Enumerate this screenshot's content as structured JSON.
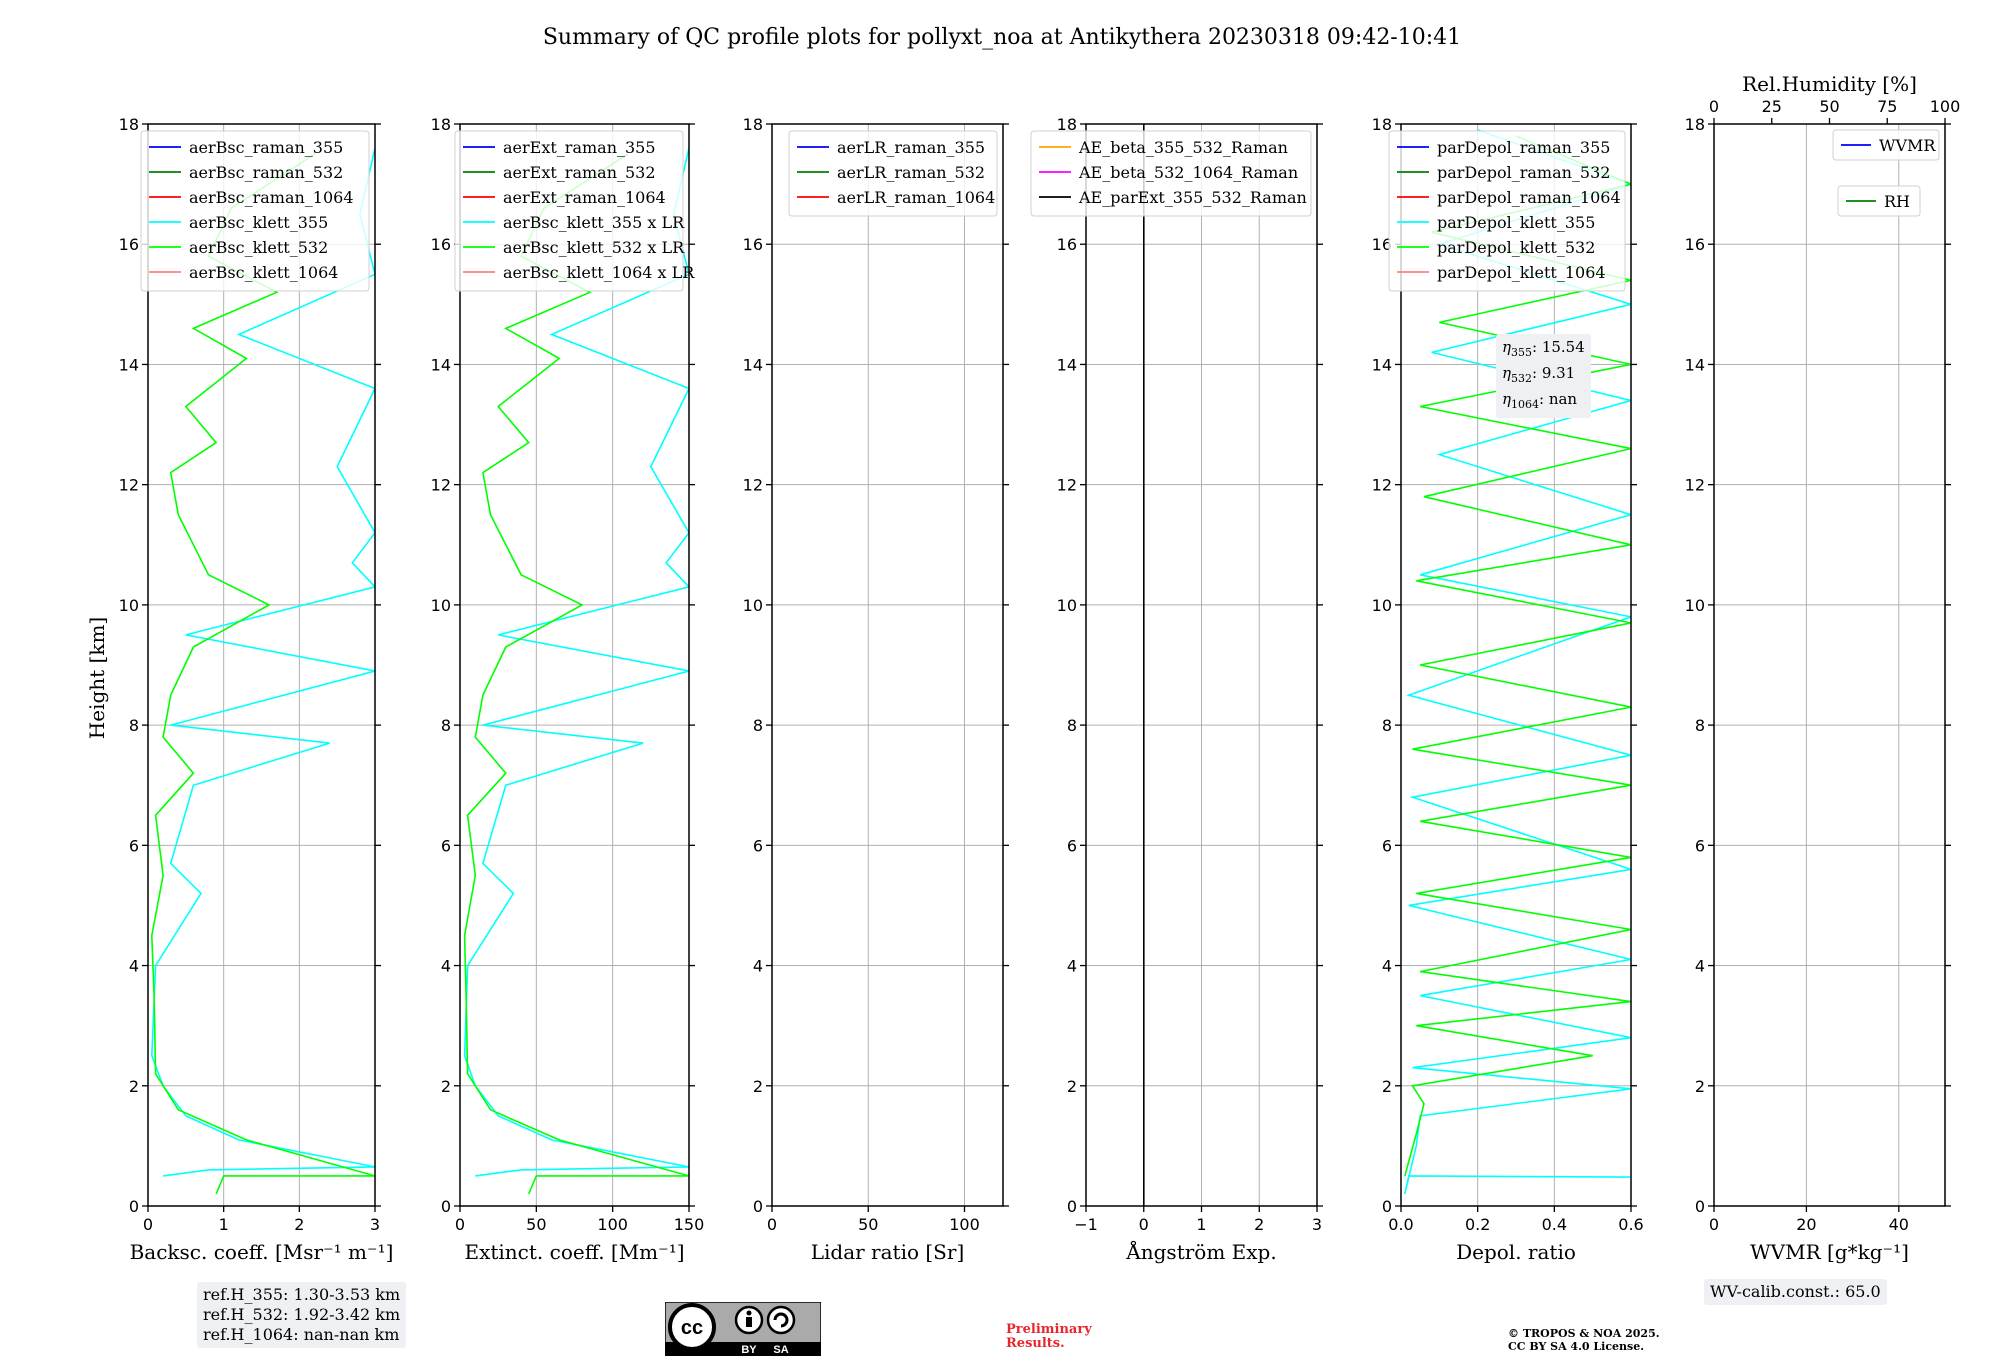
{
  "title": "Summary of QC profile plots for pollyxt_noa at Antikythera 20230318 09:42-10:41",
  "ref_heights": [
    "ref.H_355: 1.30-3.53 km",
    "ref.H_532: 1.92-3.42 km",
    "ref.H_1064: nan-nan km"
  ],
  "eta": [
    "15.54",
    "9.31",
    "nan"
  ],
  "wv_calib": "WV-calib.const.: 65.0",
  "preliminary": [
    "Preliminary",
    "Results."
  ],
  "copyright": [
    "© TROPOS & NOA 2025.",
    "CC BY SA 4.0 License."
  ],
  "license_badge": {
    "cc": "cc",
    "by": "BY",
    "sa": "SA"
  },
  "colors": {
    "blue": "#0000ff",
    "green": "#008000",
    "red": "#ff0000",
    "cyan": "#00ffff",
    "lime": "#00ff00",
    "salmon": "#ff8080",
    "orange": "#ffa500",
    "magenta": "#ff00ff",
    "black": "#000000"
  },
  "chart_data": [
    {
      "type": "line",
      "xlabel": "Backsc. coeff. [Msr⁻¹ m⁻¹]",
      "ylabel": "Height [km]",
      "xlim": [
        0,
        3
      ],
      "ylim": [
        0,
        18
      ],
      "xticks": [
        0,
        1,
        2,
        3
      ],
      "yticks": [
        0,
        2,
        4,
        6,
        8,
        10,
        12,
        14,
        16,
        18
      ],
      "grid": true,
      "legend": "top-right",
      "series": [
        {
          "name": "aerBsc_raman_355",
          "color": "#0000ff",
          "values": []
        },
        {
          "name": "aerBsc_raman_532",
          "color": "#008000",
          "values": []
        },
        {
          "name": "aerBsc_raman_1064",
          "color": "#ff0000",
          "values": []
        },
        {
          "name": "aerBsc_klett_355",
          "color": "#00ffff",
          "values": [
            [
              0.2,
              0.5
            ],
            [
              0.8,
              0.6
            ],
            [
              3,
              0.65
            ],
            [
              1.2,
              1.1
            ],
            [
              0.5,
              1.5
            ],
            [
              0.2,
              2
            ],
            [
              0.05,
              2.5
            ],
            [
              0.1,
              4
            ],
            [
              0.7,
              5.2
            ],
            [
              0.3,
              5.7
            ],
            [
              0.6,
              7
            ],
            [
              2.4,
              7.7
            ],
            [
              0.3,
              8
            ],
            [
              3,
              8.9
            ],
            [
              0.5,
              9.5
            ],
            [
              3,
              10.3
            ],
            [
              2.7,
              10.7
            ],
            [
              3,
              11.2
            ],
            [
              2.5,
              12.3
            ],
            [
              3,
              13.6
            ],
            [
              1.2,
              14.5
            ],
            [
              3,
              15.5
            ],
            [
              2.8,
              16.5
            ],
            [
              3,
              17.6
            ]
          ]
        },
        {
          "name": "aerBsc_klett_532",
          "color": "#00ff00",
          "values": [
            [
              0.9,
              0.2
            ],
            [
              1.0,
              0.5
            ],
            [
              3,
              0.5
            ],
            [
              1.3,
              1.1
            ],
            [
              0.4,
              1.6
            ],
            [
              0.1,
              2.2
            ],
            [
              0.08,
              3.5
            ],
            [
              0.05,
              4.5
            ],
            [
              0.2,
              5.5
            ],
            [
              0.1,
              6.5
            ],
            [
              0.6,
              7.2
            ],
            [
              0.2,
              7.8
            ],
            [
              0.3,
              8.5
            ],
            [
              0.6,
              9.3
            ],
            [
              1.6,
              10
            ],
            [
              0.8,
              10.5
            ],
            [
              0.4,
              11.5
            ],
            [
              0.3,
              12.2
            ],
            [
              0.9,
              12.7
            ],
            [
              0.5,
              13.3
            ],
            [
              1.3,
              14.1
            ],
            [
              0.6,
              14.6
            ],
            [
              1.7,
              15.2
            ],
            [
              0.8,
              15.8
            ],
            [
              1.1,
              16.6
            ],
            [
              2.2,
              17.5
            ]
          ]
        },
        {
          "name": "aerBsc_klett_1064",
          "color": "#ff8080",
          "values": []
        }
      ]
    },
    {
      "type": "line",
      "xlabel": "Extinct. coeff. [Mm⁻¹]",
      "ylabel": "",
      "xlim": [
        0,
        150
      ],
      "ylim": [
        0,
        18
      ],
      "xticks": [
        0,
        50,
        100,
        150
      ],
      "yticks": [
        0,
        2,
        4,
        6,
        8,
        10,
        12,
        14,
        16,
        18
      ],
      "grid": true,
      "legend": "top-right",
      "series": [
        {
          "name": "aerExt_raman_355",
          "color": "#0000ff",
          "values": []
        },
        {
          "name": "aerExt_raman_532",
          "color": "#008000",
          "values": []
        },
        {
          "name": "aerExt_raman_1064",
          "color": "#ff0000",
          "values": []
        },
        {
          "name": "aerBsc_klett_355 x LR",
          "color": "#00ffff",
          "values": [
            [
              10,
              0.5
            ],
            [
              40,
              0.6
            ],
            [
              150,
              0.65
            ],
            [
              60,
              1.1
            ],
            [
              25,
              1.5
            ],
            [
              10,
              2
            ],
            [
              3,
              2.5
            ],
            [
              5,
              4
            ],
            [
              35,
              5.2
            ],
            [
              15,
              5.7
            ],
            [
              30,
              7
            ],
            [
              120,
              7.7
            ],
            [
              15,
              8
            ],
            [
              150,
              8.9
            ],
            [
              25,
              9.5
            ],
            [
              150,
              10.3
            ],
            [
              135,
              10.7
            ],
            [
              150,
              11.2
            ],
            [
              125,
              12.3
            ],
            [
              150,
              13.6
            ],
            [
              60,
              14.5
            ],
            [
              150,
              15.5
            ],
            [
              140,
              16.5
            ],
            [
              150,
              17.6
            ]
          ]
        },
        {
          "name": "aerBsc_klett_532 x LR",
          "color": "#00ff00",
          "values": [
            [
              45,
              0.2
            ],
            [
              50,
              0.5
            ],
            [
              150,
              0.5
            ],
            [
              65,
              1.1
            ],
            [
              20,
              1.6
            ],
            [
              5,
              2.2
            ],
            [
              4,
              3.5
            ],
            [
              3,
              4.5
            ],
            [
              10,
              5.5
            ],
            [
              5,
              6.5
            ],
            [
              30,
              7.2
            ],
            [
              10,
              7.8
            ],
            [
              15,
              8.5
            ],
            [
              30,
              9.3
            ],
            [
              80,
              10
            ],
            [
              40,
              10.5
            ],
            [
              20,
              11.5
            ],
            [
              15,
              12.2
            ],
            [
              45,
              12.7
            ],
            [
              25,
              13.3
            ],
            [
              65,
              14.1
            ],
            [
              30,
              14.6
            ],
            [
              85,
              15.2
            ],
            [
              40,
              15.8
            ],
            [
              55,
              16.6
            ],
            [
              110,
              17.5
            ]
          ]
        },
        {
          "name": "aerBsc_klett_1064 x LR",
          "color": "#ff8080",
          "values": []
        }
      ]
    },
    {
      "type": "line",
      "xlabel": "Lidar ratio [Sr]",
      "ylabel": "",
      "xlim": [
        0,
        120
      ],
      "ylim": [
        0,
        18
      ],
      "xticks": [
        0,
        50,
        100
      ],
      "yticks": [
        0,
        2,
        4,
        6,
        8,
        10,
        12,
        14,
        16,
        18
      ],
      "grid": true,
      "legend": "top-right",
      "series": [
        {
          "name": "aerLR_raman_355",
          "color": "#0000ff",
          "values": []
        },
        {
          "name": "aerLR_raman_532",
          "color": "#008000",
          "values": []
        },
        {
          "name": "aerLR_raman_1064",
          "color": "#ff0000",
          "values": []
        }
      ]
    },
    {
      "type": "line",
      "xlabel": "Ångström Exp.",
      "ylabel": "",
      "xlim": [
        -1,
        3
      ],
      "ylim": [
        0,
        18
      ],
      "xticks": [
        -1,
        0,
        1,
        2,
        3
      ],
      "yticks": [
        0,
        2,
        4,
        6,
        8,
        10,
        12,
        14,
        16,
        18
      ],
      "grid": true,
      "legend": "top-right",
      "series": [
        {
          "name": "AE_beta_355_532_Raman",
          "color": "#ffa500",
          "values": []
        },
        {
          "name": "AE_beta_532_1064_Raman",
          "color": "#ff00ff",
          "values": []
        },
        {
          "name": "AE_parExt_355_532_Raman",
          "color": "#000000",
          "values": [
            [
              0,
              0
            ],
            [
              0,
              18
            ]
          ]
        }
      ]
    },
    {
      "type": "line",
      "xlabel": "Depol. ratio",
      "ylabel": "",
      "xlim": [
        0,
        0.6
      ],
      "ylim": [
        0,
        18
      ],
      "xticks": [
        0.0,
        0.2,
        0.4,
        0.6
      ],
      "yticks": [
        0,
        2,
        4,
        6,
        8,
        10,
        12,
        14,
        16,
        18
      ],
      "grid": true,
      "legend": "top-right",
      "series": [
        {
          "name": "parDepol_raman_355",
          "color": "#0000ff",
          "values": []
        },
        {
          "name": "parDepol_raman_532",
          "color": "#008000",
          "values": []
        },
        {
          "name": "parDepol_raman_1064",
          "color": "#ff0000",
          "values": []
        },
        {
          "name": "parDepol_klett_355",
          "color": "#00ffff",
          "values": [
            [
              0.6,
              0.48
            ],
            [
              0.02,
              0.5
            ],
            [
              0.01,
              0.2
            ],
            [
              0.04,
              1
            ],
            [
              0.05,
              1.5
            ],
            [
              0.6,
              1.95
            ],
            [
              0.03,
              2.3
            ],
            [
              0.6,
              2.8
            ],
            [
              0.05,
              3.5
            ],
            [
              0.6,
              4.1
            ],
            [
              0.02,
              5
            ],
            [
              0.6,
              5.6
            ],
            [
              0.03,
              6.8
            ],
            [
              0.6,
              7.5
            ],
            [
              0.02,
              8.5
            ],
            [
              0.6,
              9.8
            ],
            [
              0.05,
              10.5
            ],
            [
              0.6,
              11.5
            ],
            [
              0.1,
              12.5
            ],
            [
              0.6,
              13.4
            ],
            [
              0.08,
              14.2
            ],
            [
              0.6,
              15
            ],
            [
              0.1,
              16
            ],
            [
              0.6,
              17
            ],
            [
              0.2,
              17.9
            ]
          ]
        },
        {
          "name": "parDepol_klett_532",
          "color": "#00ff00",
          "values": [
            [
              0.01,
              0.5
            ],
            [
              0.04,
              1.2
            ],
            [
              0.06,
              1.7
            ],
            [
              0.03,
              2
            ],
            [
              0.5,
              2.5
            ],
            [
              0.04,
              3
            ],
            [
              0.6,
              3.4
            ],
            [
              0.05,
              3.9
            ],
            [
              0.6,
              4.6
            ],
            [
              0.04,
              5.2
            ],
            [
              0.6,
              5.8
            ],
            [
              0.05,
              6.4
            ],
            [
              0.6,
              7
            ],
            [
              0.03,
              7.6
            ],
            [
              0.6,
              8.3
            ],
            [
              0.05,
              9
            ],
            [
              0.6,
              9.7
            ],
            [
              0.04,
              10.4
            ],
            [
              0.6,
              11
            ],
            [
              0.06,
              11.8
            ],
            [
              0.6,
              12.6
            ],
            [
              0.05,
              13.3
            ],
            [
              0.6,
              14
            ],
            [
              0.1,
              14.7
            ],
            [
              0.6,
              15.4
            ],
            [
              0.08,
              16.2
            ],
            [
              0.6,
              17
            ],
            [
              0.3,
              17.8
            ]
          ]
        },
        {
          "name": "parDepol_klett_1064",
          "color": "#ff8080",
          "values": []
        }
      ]
    },
    {
      "type": "line",
      "xlabel": "WVMR [g*kg⁻¹]",
      "x2label": "Rel.Humidity [%]",
      "ylabel": "",
      "xlim": [
        0,
        50
      ],
      "x2lim": [
        0,
        100
      ],
      "ylim": [
        0,
        18
      ],
      "xticks": [
        0,
        20,
        40
      ],
      "x2ticks": [
        0,
        25,
        50,
        75,
        100
      ],
      "yticks": [
        0,
        2,
        4,
        6,
        8,
        10,
        12,
        14,
        16,
        18
      ],
      "grid": true,
      "legend": "top-right",
      "series": [
        {
          "name": "WVMR",
          "color": "#0000ff",
          "values": []
        },
        {
          "name": "RH",
          "color": "#008000",
          "values": []
        }
      ]
    }
  ]
}
